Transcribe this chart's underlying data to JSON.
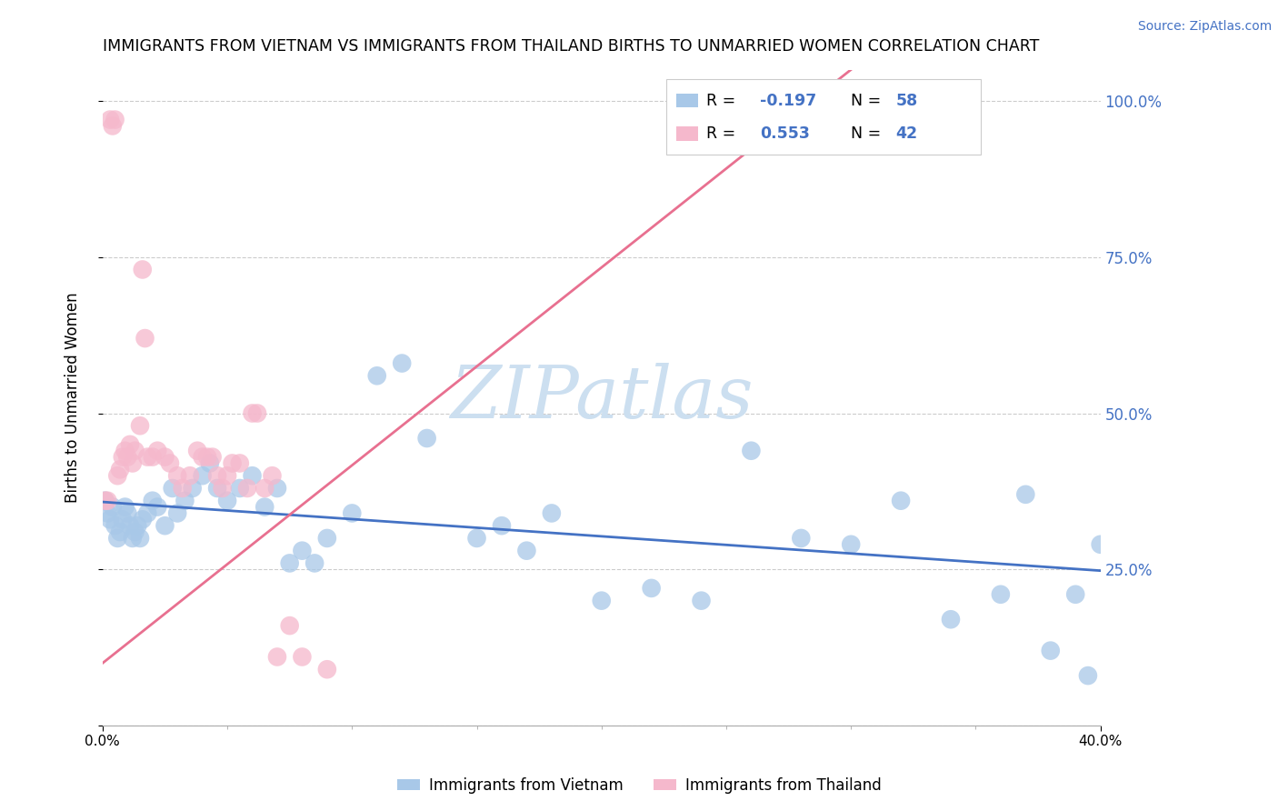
{
  "title": "IMMIGRANTS FROM VIETNAM VS IMMIGRANTS FROM THAILAND BIRTHS TO UNMARRIED WOMEN CORRELATION CHART",
  "source": "Source: ZipAtlas.com",
  "ylabel": "Births to Unmarried Women",
  "legend_label1": "Immigrants from Vietnam",
  "legend_label2": "Immigrants from Thailand",
  "R1": -0.197,
  "N1": 58,
  "R2": 0.553,
  "N2": 42,
  "color_vietnam": "#a8c8e8",
  "color_thailand": "#f5b8cc",
  "color_line_vietnam": "#4472c4",
  "color_line_thailand": "#e87090",
  "color_axis_blue": "#4472c4",
  "xmin": 0.0,
  "xmax": 0.4,
  "ymin": 0.0,
  "ymax": 1.05,
  "watermark": "ZIPatlas",
  "vietnam_x": [
    0.001,
    0.002,
    0.003,
    0.004,
    0.005,
    0.006,
    0.007,
    0.008,
    0.009,
    0.01,
    0.011,
    0.012,
    0.013,
    0.014,
    0.015,
    0.016,
    0.018,
    0.02,
    0.022,
    0.025,
    0.028,
    0.03,
    0.033,
    0.036,
    0.04,
    0.043,
    0.046,
    0.05,
    0.055,
    0.06,
    0.065,
    0.07,
    0.075,
    0.08,
    0.085,
    0.09,
    0.1,
    0.11,
    0.12,
    0.13,
    0.15,
    0.16,
    0.17,
    0.18,
    0.2,
    0.22,
    0.24,
    0.26,
    0.28,
    0.3,
    0.32,
    0.34,
    0.36,
    0.37,
    0.38,
    0.39,
    0.395,
    0.4
  ],
  "vietnam_y": [
    0.36,
    0.34,
    0.33,
    0.35,
    0.32,
    0.3,
    0.31,
    0.33,
    0.35,
    0.34,
    0.32,
    0.3,
    0.31,
    0.32,
    0.3,
    0.33,
    0.34,
    0.36,
    0.35,
    0.32,
    0.38,
    0.34,
    0.36,
    0.38,
    0.4,
    0.42,
    0.38,
    0.36,
    0.38,
    0.4,
    0.35,
    0.38,
    0.26,
    0.28,
    0.26,
    0.3,
    0.34,
    0.56,
    0.58,
    0.46,
    0.3,
    0.32,
    0.28,
    0.34,
    0.2,
    0.22,
    0.2,
    0.44,
    0.3,
    0.29,
    0.36,
    0.17,
    0.21,
    0.37,
    0.12,
    0.21,
    0.08,
    0.29
  ],
  "thailand_x": [
    0.001,
    0.002,
    0.003,
    0.004,
    0.005,
    0.006,
    0.007,
    0.008,
    0.009,
    0.01,
    0.011,
    0.012,
    0.013,
    0.015,
    0.016,
    0.017,
    0.018,
    0.02,
    0.022,
    0.025,
    0.027,
    0.03,
    0.032,
    0.035,
    0.038,
    0.04,
    0.042,
    0.044,
    0.046,
    0.048,
    0.05,
    0.052,
    0.055,
    0.058,
    0.06,
    0.062,
    0.065,
    0.068,
    0.07,
    0.075,
    0.08,
    0.09
  ],
  "thailand_y": [
    0.36,
    0.36,
    0.97,
    0.96,
    0.97,
    0.4,
    0.41,
    0.43,
    0.44,
    0.43,
    0.45,
    0.42,
    0.44,
    0.48,
    0.73,
    0.62,
    0.43,
    0.43,
    0.44,
    0.43,
    0.42,
    0.4,
    0.38,
    0.4,
    0.44,
    0.43,
    0.43,
    0.43,
    0.4,
    0.38,
    0.4,
    0.42,
    0.42,
    0.38,
    0.5,
    0.5,
    0.38,
    0.4,
    0.11,
    0.16,
    0.11,
    0.09
  ],
  "viet_trend": [
    0.0,
    0.4,
    0.358,
    0.248
  ],
  "thai_trend": [
    0.0,
    0.3,
    0.1,
    1.05
  ]
}
